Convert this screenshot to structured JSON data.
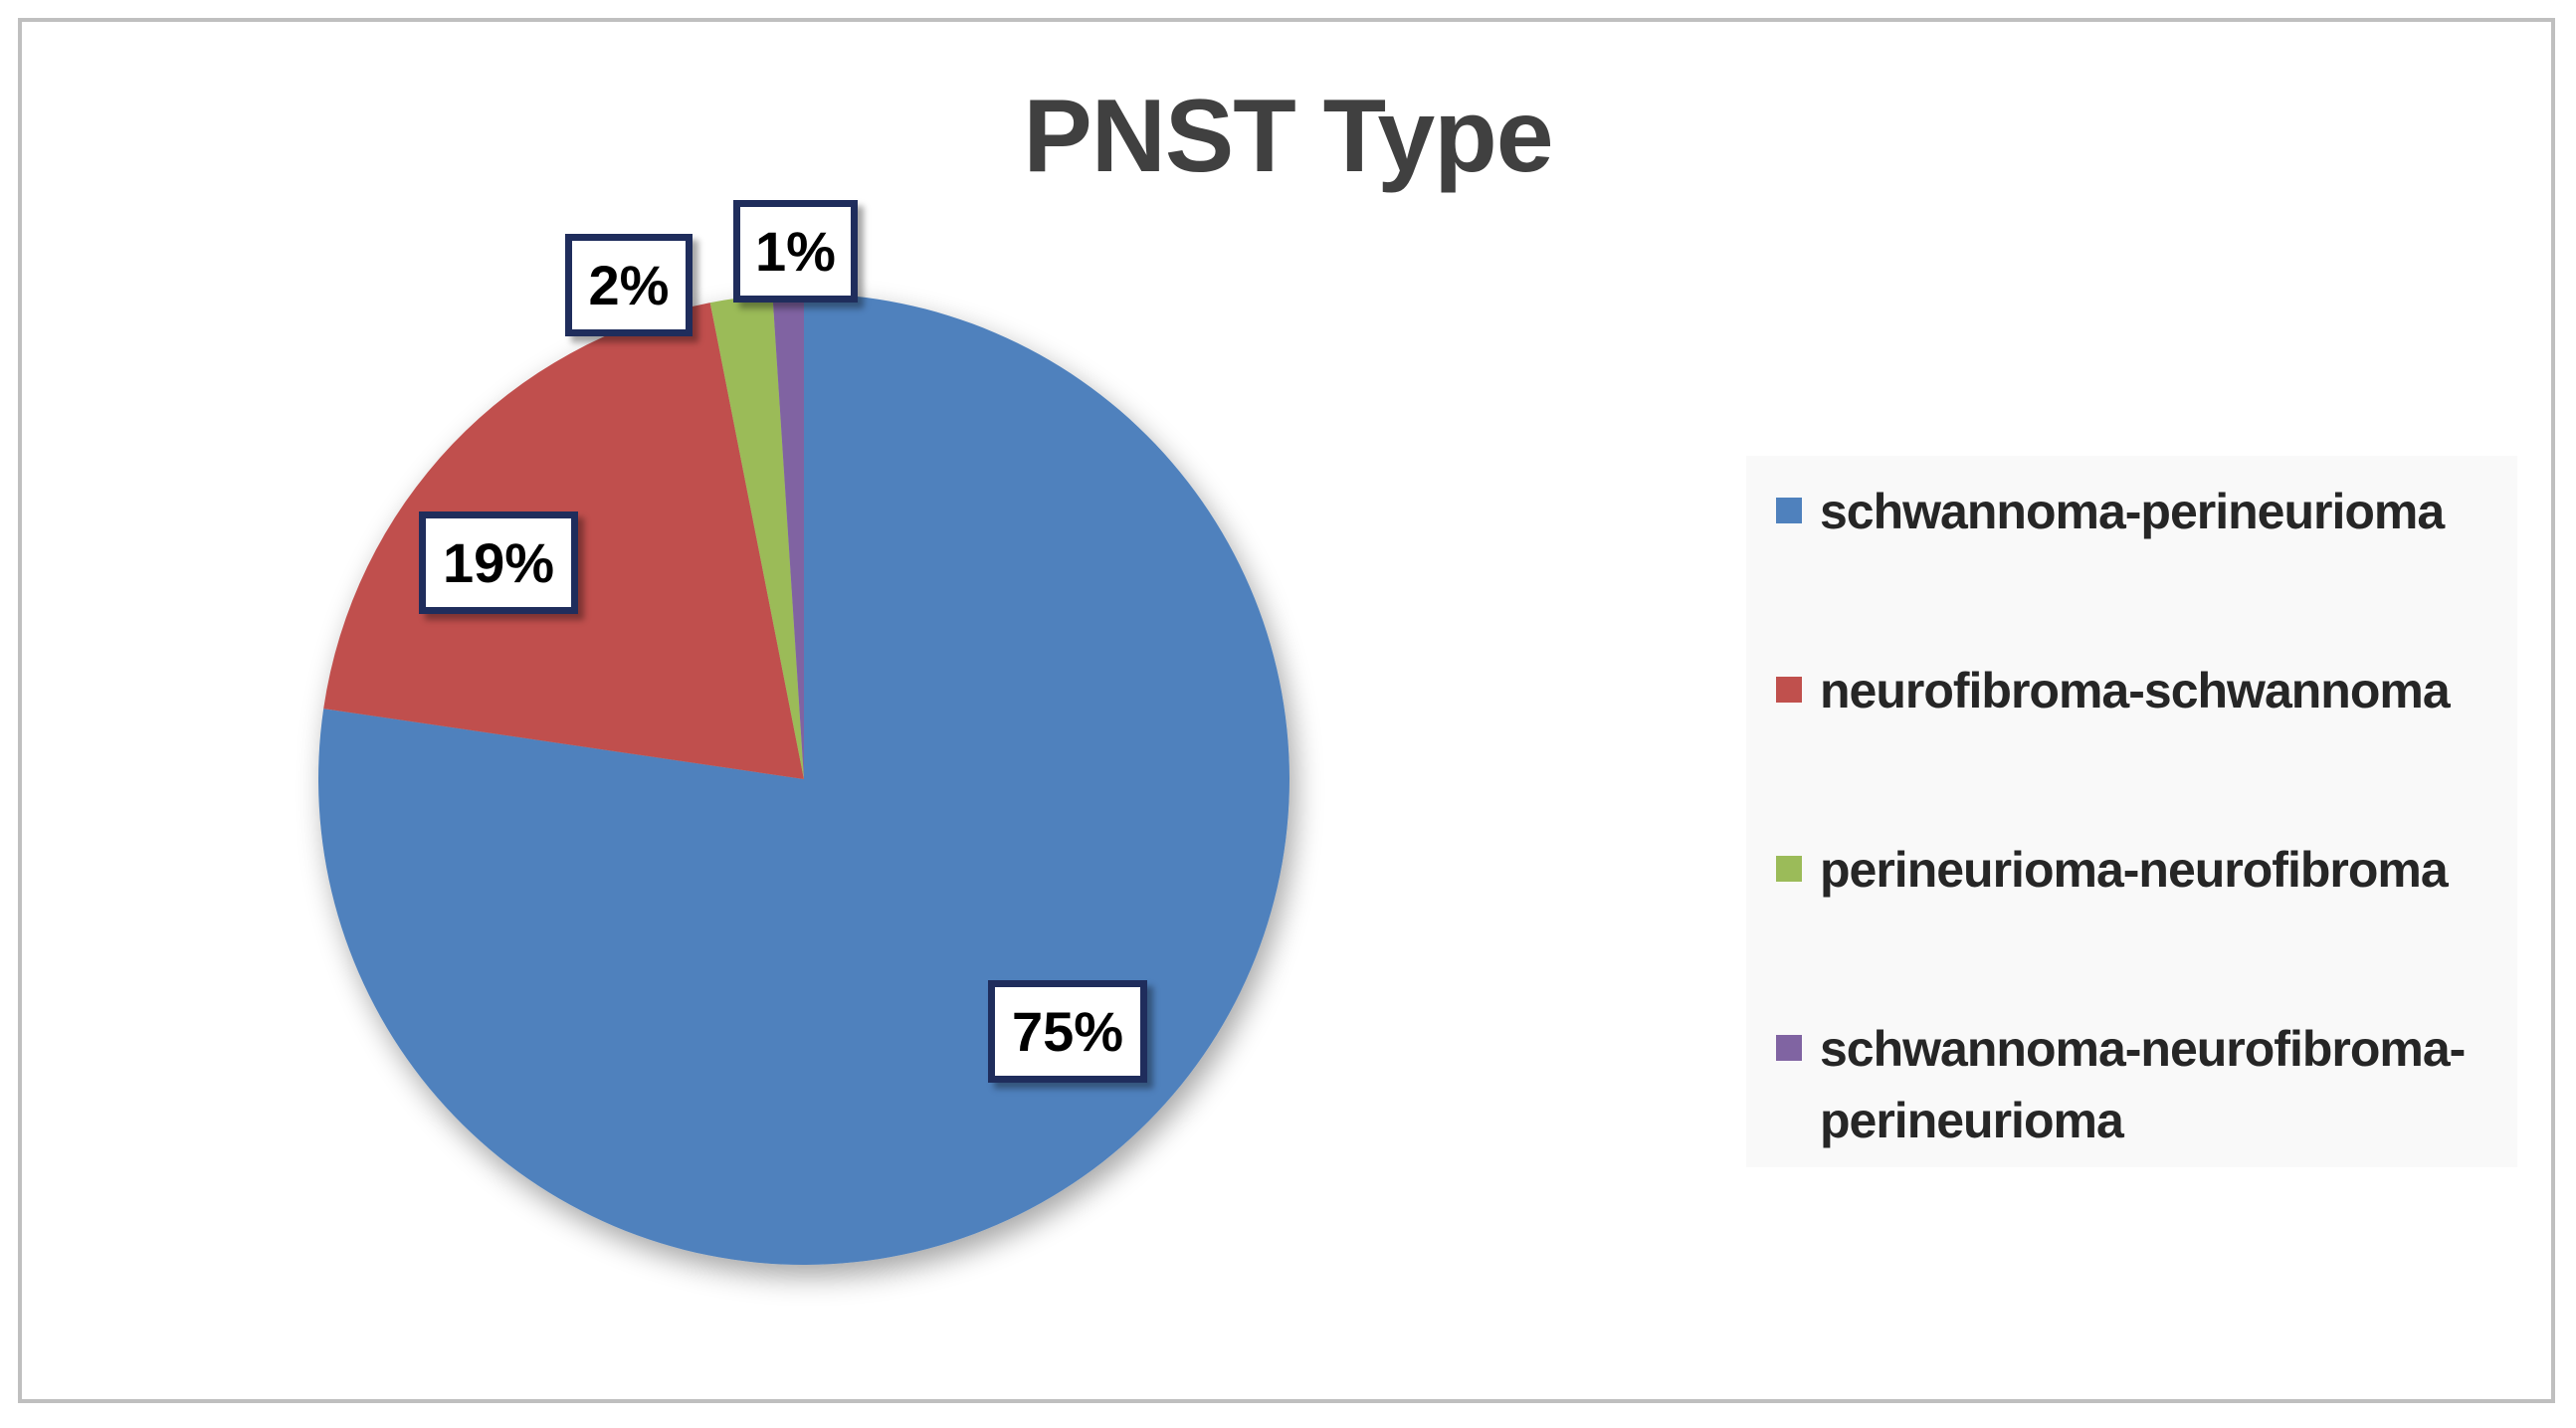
{
  "chart_data": {
    "type": "pie",
    "title": "PNST Type",
    "categories": [
      "schwannoma-perineurioma",
      "neurofibroma-schwannoma",
      "perineurioma-neurofibroma",
      "schwannoma-neurofibroma-perineurioma"
    ],
    "values": [
      75,
      19,
      2,
      1
    ],
    "data_labels": [
      "75%",
      "19%",
      "2%",
      "1%"
    ],
    "colors": [
      "#4f81bd",
      "#c0504d",
      "#9bbb59",
      "#8064a2"
    ],
    "legend_position": "right"
  }
}
